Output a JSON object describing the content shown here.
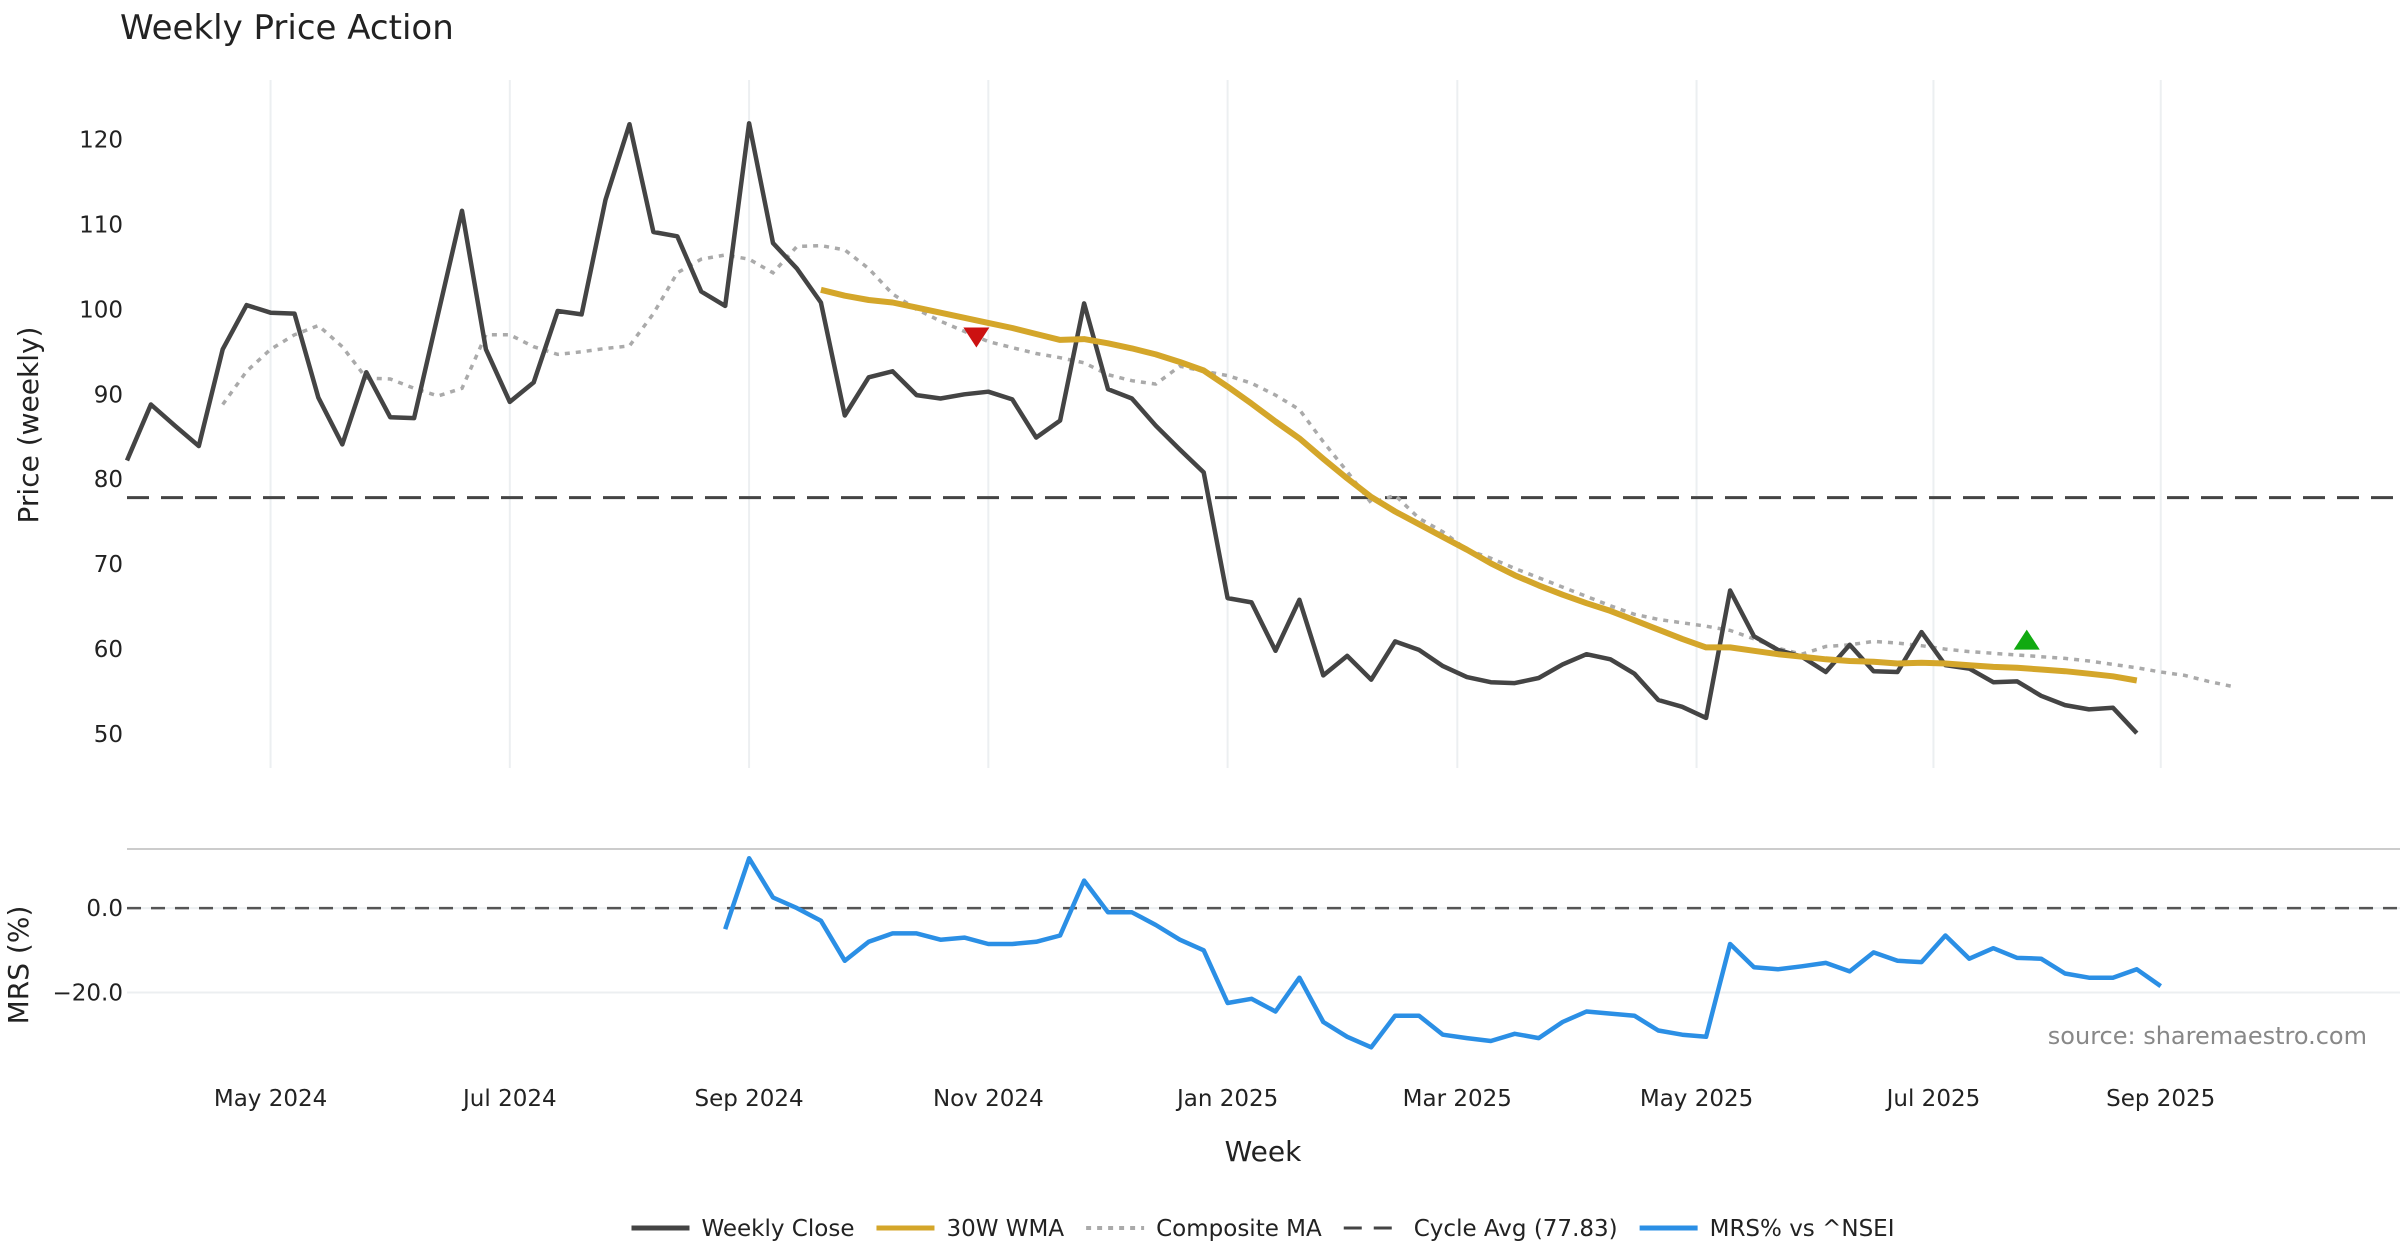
{
  "chart_data": {
    "type": "line",
    "title": "Weekly Price Action",
    "xlabel": "Week",
    "source": "source: sharemaestro.com",
    "x_ticks": [
      "May 2024",
      "Jul 2024",
      "Sep 2024",
      "Nov 2024",
      "Jan 2025",
      "Mar 2025",
      "May 2025",
      "Jul 2025",
      "Sep 2025"
    ],
    "x_tick_weeks": [
      7,
      17,
      27,
      37,
      47,
      56.6,
      66.6,
      76.5,
      86
    ],
    "x_range_weeks": [
      1,
      96
    ],
    "price_panel": {
      "ylabel": "Price (weekly)",
      "ylim": [
        46,
        127
      ],
      "yticks": [
        50,
        60,
        70,
        80,
        90,
        100,
        110,
        120
      ],
      "cycle_avg": 77.83,
      "weekly_close": [
        82.2,
        88.8,
        86.3,
        83.9,
        95.3,
        100.5,
        99.6,
        99.5,
        89.6,
        84.1,
        92.6,
        87.3,
        87.2,
        99.4,
        111.6,
        95.3,
        89.1,
        91.4,
        99.8,
        99.4,
        112.9,
        121.8,
        109.1,
        108.6,
        102.1,
        100.4,
        121.9,
        107.8,
        104.8,
        100.8,
        87.5,
        92.0,
        92.7,
        89.9,
        89.5,
        90.0,
        90.3,
        89.4,
        84.9,
        86.9,
        100.7,
        90.6,
        89.5,
        86.3,
        83.5,
        80.8,
        66.0,
        65.5,
        59.8,
        65.8,
        56.9,
        59.2,
        56.4,
        60.9,
        59.9,
        58.0,
        56.7,
        56.1,
        56.0,
        56.6,
        58.2,
        59.4,
        58.8,
        57.1,
        54.0,
        53.2,
        51.9,
        66.9,
        61.5,
        59.9,
        59.1,
        57.3,
        60.5,
        57.4,
        57.3,
        62.0,
        58.1,
        57.7,
        56.1,
        56.2,
        54.5,
        53.4,
        52.9,
        53.1,
        50.1
      ],
      "wma_30w_start_week": 30,
      "wma_30w": [
        102.3,
        101.6,
        101.1,
        100.8,
        100.2,
        99.6,
        99.0,
        98.4,
        97.8,
        97.1,
        96.4,
        96.5,
        96.0,
        95.4,
        94.7,
        93.8,
        92.8,
        90.9,
        88.9,
        86.8,
        84.8,
        82.4,
        80.1,
        77.9,
        76.2,
        74.7,
        73.2,
        71.7,
        70.1,
        68.7,
        67.5,
        66.4,
        65.4,
        64.5,
        63.4,
        62.3,
        61.2,
        60.2,
        60.2,
        59.8,
        59.4,
        59.1,
        58.8,
        58.6,
        58.5,
        58.3,
        58.4,
        58.3,
        58.1,
        57.9,
        57.8,
        57.6,
        57.4,
        57.1,
        56.8,
        56.3
      ],
      "composite_ma_start_week": 5,
      "composite_ma": [
        88.8,
        92.7,
        95.3,
        97.0,
        98.1,
        95.6,
        91.9,
        91.8,
        90.7,
        89.8,
        90.7,
        97.0,
        97.0,
        95.6,
        94.7,
        95.0,
        95.4,
        95.7,
        99.5,
        104.3,
        105.9,
        106.4,
        105.9,
        104.3,
        107.4,
        107.5,
        107.0,
        104.8,
        101.8,
        100.0,
        98.6,
        97.4,
        96.2,
        95.5,
        94.8,
        94.3,
        93.7,
        92.3,
        91.6,
        91.2,
        93.3,
        92.7,
        92.2,
        91.3,
        89.9,
        88.2,
        84.4,
        80.9,
        77.2,
        78.1,
        75.4,
        73.8,
        71.7,
        70.7,
        69.5,
        68.4,
        67.3,
        66.2,
        65.1,
        64.1,
        63.5,
        63.1,
        62.7,
        62.2,
        61.2,
        60.1,
        59.4,
        60.3,
        60.5,
        60.9,
        60.7,
        60.4,
        60.0,
        59.7,
        59.5,
        59.3,
        59.1,
        58.9,
        58.6,
        58.2,
        57.8,
        57.3,
        56.9,
        56.2,
        55.6
      ],
      "sell_signal": {
        "week": 36.5,
        "value": 96.8
      },
      "buy_signal": {
        "week": 80.4,
        "value": 61.0
      }
    },
    "mrs_panel": {
      "ylabel": "MRS (%)",
      "ylim": [
        -36,
        14
      ],
      "yticks": [
        0.0,
        -20.0
      ],
      "ytick_labels": [
        "0.0",
        "−20.0"
      ],
      "zero_line": 0,
      "start_week": 26,
      "mrs_values": [
        -5.0,
        11.8,
        2.5,
        0.0,
        -3.0,
        -12.5,
        -8.0,
        -6.0,
        -6.0,
        -7.5,
        -7.0,
        -8.5,
        -8.5,
        -8.0,
        -6.5,
        6.5,
        -1.0,
        -1.0,
        -4.0,
        -7.5,
        -10.0,
        -22.5,
        -21.5,
        -24.5,
        -16.5,
        -27.0,
        -30.5,
        -33.0,
        -25.5,
        -25.5,
        -30.0,
        -30.8,
        -31.5,
        -29.8,
        -30.8,
        -27.0,
        -24.5,
        -25.0,
        -25.5,
        -29.0,
        -30.0,
        -30.5,
        -8.5,
        -14.0,
        -14.5,
        -13.8,
        -13.0,
        -15.0,
        -10.5,
        -12.5,
        -12.8,
        -6.5,
        -12.0,
        -9.5,
        -11.8,
        -12.0,
        -15.5,
        -16.5,
        -16.5,
        -14.5,
        -18.5
      ]
    },
    "legend": [
      {
        "label": "Weekly Close",
        "color": "#444444",
        "style": "solid"
      },
      {
        "label": "30W WMA",
        "color": "#d4a62a",
        "style": "solid"
      },
      {
        "label": "Composite MA",
        "color": "#aaaaaa",
        "style": "dotted"
      },
      {
        "label": "Cycle Avg (77.83)",
        "color": "#444444",
        "style": "dashed"
      },
      {
        "label": "MRS% vs ^NSEI",
        "color": "#2b8fe5",
        "style": "solid"
      }
    ],
    "legend_position": "bottom-center",
    "grid": "vertical"
  }
}
